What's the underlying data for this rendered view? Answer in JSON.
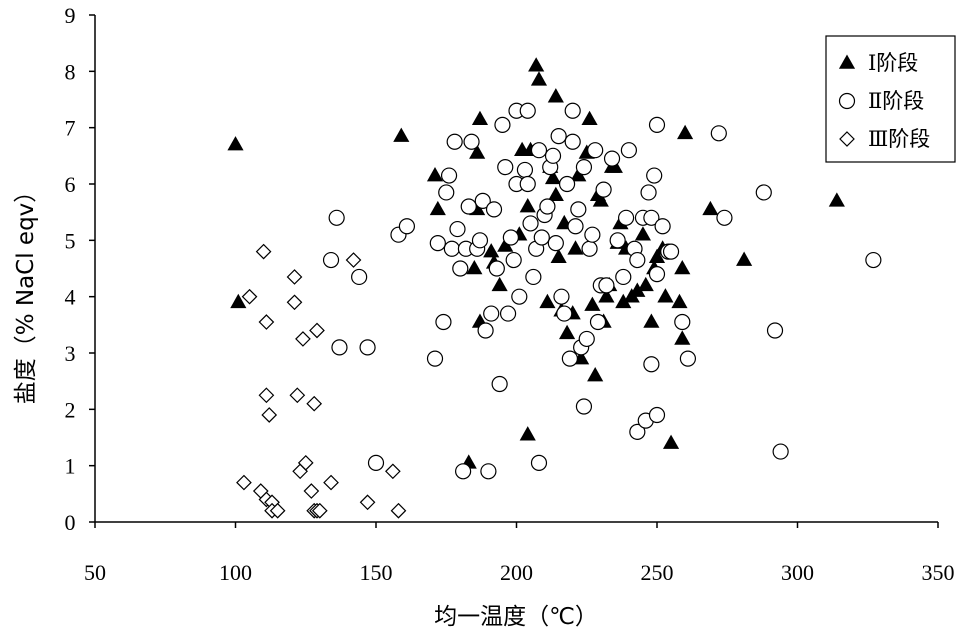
{
  "chart_data": {
    "type": "scatter",
    "xlabel": "均一温度（℃）",
    "ylabel": "盐度（% NaCl eqv）",
    "xlim": [
      50,
      350
    ],
    "ylim": [
      0,
      9
    ],
    "xticks": [
      50,
      100,
      150,
      200,
      250,
      300,
      350
    ],
    "yticks": [
      0,
      1,
      2,
      3,
      4,
      5,
      6,
      7,
      8,
      9
    ],
    "grid": false,
    "legend_position": "top-right",
    "series": [
      {
        "name": "Ⅰ阶段",
        "marker": "filled-triangle",
        "points": [
          [
            100,
            6.7
          ],
          [
            101,
            3.9
          ],
          [
            159,
            6.85
          ],
          [
            183,
            1.05
          ],
          [
            185,
            4.5
          ],
          [
            187,
            3.55
          ],
          [
            186,
            5.55
          ],
          [
            186,
            6.55
          ],
          [
            187,
            7.15
          ],
          [
            171,
            6.15
          ],
          [
            172,
            5.55
          ],
          [
            191,
            4.8
          ],
          [
            192,
            4.6
          ],
          [
            194,
            4.2
          ],
          [
            196,
            4.9
          ],
          [
            201,
            5.1
          ],
          [
            202,
            6.6
          ],
          [
            204,
            1.55
          ],
          [
            204,
            5.6
          ],
          [
            205,
            6.6
          ],
          [
            207,
            8.1
          ],
          [
            208,
            7.85
          ],
          [
            211,
            3.9
          ],
          [
            212,
            6.3
          ],
          [
            213,
            6.1
          ],
          [
            214,
            5.8
          ],
          [
            214,
            7.55
          ],
          [
            215,
            4.7
          ],
          [
            216,
            3.75
          ],
          [
            217,
            5.3
          ],
          [
            218,
            3.35
          ],
          [
            220,
            3.7
          ],
          [
            221,
            4.85
          ],
          [
            222,
            6.15
          ],
          [
            223,
            2.9
          ],
          [
            225,
            6.55
          ],
          [
            226,
            7.15
          ],
          [
            227,
            3.85
          ],
          [
            228,
            2.6
          ],
          [
            229,
            5.8
          ],
          [
            230,
            5.7
          ],
          [
            231,
            3.55
          ],
          [
            232,
            4.0
          ],
          [
            233,
            4.2
          ],
          [
            234,
            6.3
          ],
          [
            235,
            6.3
          ],
          [
            236,
            4.95
          ],
          [
            237,
            5.3
          ],
          [
            238,
            3.9
          ],
          [
            239,
            4.85
          ],
          [
            241,
            4.0
          ],
          [
            243,
            4.1
          ],
          [
            245,
            5.1
          ],
          [
            246,
            4.2
          ],
          [
            248,
            3.55
          ],
          [
            249,
            4.5
          ],
          [
            250,
            4.7
          ],
          [
            252,
            4.85
          ],
          [
            253,
            4.0
          ],
          [
            255,
            1.4
          ],
          [
            258,
            3.9
          ],
          [
            259,
            3.25
          ],
          [
            259,
            4.5
          ],
          [
            260,
            6.9
          ],
          [
            269,
            5.55
          ],
          [
            281,
            4.65
          ],
          [
            314,
            5.7
          ]
        ]
      },
      {
        "name": "Ⅱ阶段",
        "marker": "open-circle",
        "points": [
          [
            136,
            5.4
          ],
          [
            134,
            4.65
          ],
          [
            137,
            3.1
          ],
          [
            144,
            4.35
          ],
          [
            147,
            3.1
          ],
          [
            150,
            1.05
          ],
          [
            158,
            5.1
          ],
          [
            161,
            5.25
          ],
          [
            171,
            2.9
          ],
          [
            172,
            4.95
          ],
          [
            174,
            3.55
          ],
          [
            175,
            5.85
          ],
          [
            176,
            6.15
          ],
          [
            177,
            4.85
          ],
          [
            178,
            6.75
          ],
          [
            179,
            5.2
          ],
          [
            180,
            4.5
          ],
          [
            181,
            0.9
          ],
          [
            182,
            4.85
          ],
          [
            183,
            5.6
          ],
          [
            184,
            6.75
          ],
          [
            186,
            4.85
          ],
          [
            187,
            5.0
          ],
          [
            188,
            5.7
          ],
          [
            189,
            3.4
          ],
          [
            190,
            0.9
          ],
          [
            191,
            3.7
          ],
          [
            192,
            5.55
          ],
          [
            193,
            4.5
          ],
          [
            194,
            2.45
          ],
          [
            195,
            7.05
          ],
          [
            196,
            6.3
          ],
          [
            197,
            3.7
          ],
          [
            198,
            5.05
          ],
          [
            199,
            4.65
          ],
          [
            200,
            6.0
          ],
          [
            200,
            7.3
          ],
          [
            201,
            4.0
          ],
          [
            203,
            6.25
          ],
          [
            204,
            6.0
          ],
          [
            204,
            7.3
          ],
          [
            205,
            5.3
          ],
          [
            206,
            4.35
          ],
          [
            207,
            4.85
          ],
          [
            208,
            1.05
          ],
          [
            208,
            6.6
          ],
          [
            209,
            5.05
          ],
          [
            210,
            5.45
          ],
          [
            211,
            5.6
          ],
          [
            212,
            6.3
          ],
          [
            213,
            6.5
          ],
          [
            214,
            4.95
          ],
          [
            215,
            6.85
          ],
          [
            216,
            4.0
          ],
          [
            217,
            3.7
          ],
          [
            218,
            6.0
          ],
          [
            219,
            2.9
          ],
          [
            220,
            6.75
          ],
          [
            220,
            7.3
          ],
          [
            221,
            5.25
          ],
          [
            222,
            5.55
          ],
          [
            223,
            3.1
          ],
          [
            224,
            2.05
          ],
          [
            224,
            6.3
          ],
          [
            225,
            3.25
          ],
          [
            226,
            4.85
          ],
          [
            227,
            5.1
          ],
          [
            228,
            6.6
          ],
          [
            229,
            3.55
          ],
          [
            230,
            4.2
          ],
          [
            231,
            5.9
          ],
          [
            232,
            4.2
          ],
          [
            234,
            6.45
          ],
          [
            236,
            5.0
          ],
          [
            238,
            4.35
          ],
          [
            239,
            5.4
          ],
          [
            240,
            6.6
          ],
          [
            242,
            4.85
          ],
          [
            243,
            4.65
          ],
          [
            243,
            1.6
          ],
          [
            245,
            5.4
          ],
          [
            246,
            1.8
          ],
          [
            247,
            5.85
          ],
          [
            248,
            5.4
          ],
          [
            248,
            2.8
          ],
          [
            249,
            6.15
          ],
          [
            250,
            1.9
          ],
          [
            250,
            7.05
          ],
          [
            250,
            4.4
          ],
          [
            252,
            5.25
          ],
          [
            254,
            4.8
          ],
          [
            255,
            4.8
          ],
          [
            259,
            3.55
          ],
          [
            261,
            2.9
          ],
          [
            272,
            6.9
          ],
          [
            274,
            5.4
          ],
          [
            288,
            5.85
          ],
          [
            292,
            3.4
          ],
          [
            294,
            1.25
          ],
          [
            327,
            4.65
          ]
        ]
      },
      {
        "name": "Ⅲ阶段",
        "marker": "open-diamond",
        "points": [
          [
            103,
            0.7
          ],
          [
            105,
            4.0
          ],
          [
            109,
            0.55
          ],
          [
            110,
            4.8
          ],
          [
            111,
            0.4
          ],
          [
            111,
            3.55
          ],
          [
            111,
            2.25
          ],
          [
            112,
            1.9
          ],
          [
            113,
            0.35
          ],
          [
            113,
            0.2
          ],
          [
            115,
            0.2
          ],
          [
            121,
            4.35
          ],
          [
            121,
            3.9
          ],
          [
            122,
            2.25
          ],
          [
            123,
            0.9
          ],
          [
            124,
            3.25
          ],
          [
            125,
            1.05
          ],
          [
            127,
            0.55
          ],
          [
            128,
            2.1
          ],
          [
            128,
            0.2
          ],
          [
            129,
            3.4
          ],
          [
            129,
            0.2
          ],
          [
            130,
            0.2
          ],
          [
            134,
            0.7
          ],
          [
            142,
            4.65
          ],
          [
            147,
            0.35
          ],
          [
            156,
            0.9
          ],
          [
            158,
            0.2
          ]
        ]
      }
    ]
  }
}
